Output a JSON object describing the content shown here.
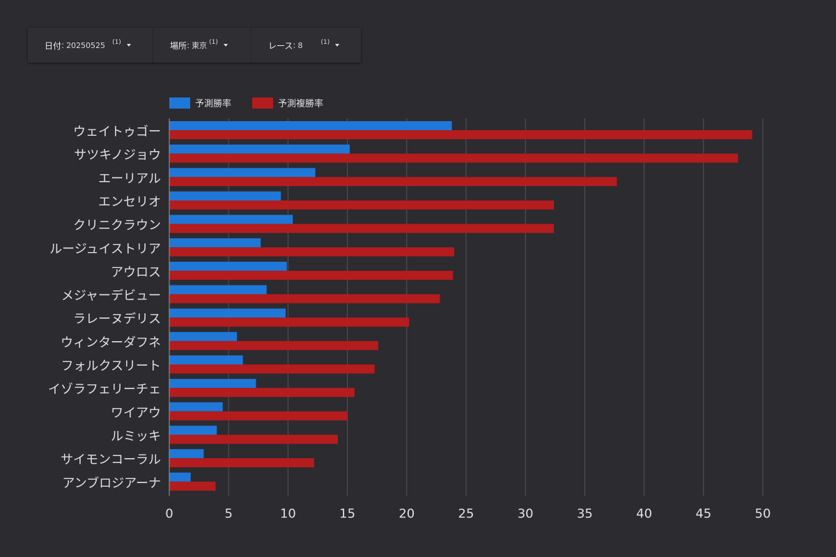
{
  "filters": [
    {
      "label": "日付",
      "value": "20250525",
      "count": "(1)"
    },
    {
      "label": "場所",
      "value": "東京",
      "count": "(1)"
    },
    {
      "label": "レース",
      "value": "8",
      "count": "(1)"
    }
  ],
  "colors": {
    "win": "#1f78d8",
    "place": "#b41c1d",
    "background": "#2c2b30",
    "grid": "#555459",
    "text": "#e0e0e0"
  },
  "chart_data": {
    "type": "bar",
    "orientation": "horizontal",
    "categories": [
      "ウェイトゥゴー",
      "サツキノジョウ",
      "エーリアル",
      "エンセリオ",
      "クリニクラウン",
      "ルージュイストリア",
      "アウロス",
      "メジャーデビュー",
      "ラレーヌデリス",
      "ウィンターダフネ",
      "フォルクスリート",
      "イゾラフェリーチェ",
      "ワイアウ",
      "ルミッキ",
      "サイモンコーラル",
      "アンブロジアーナ"
    ],
    "series": [
      {
        "name": "予測勝率",
        "color": "#1f78d8",
        "values": [
          23.8,
          15.2,
          12.3,
          9.4,
          10.4,
          7.7,
          9.9,
          8.2,
          9.8,
          5.7,
          6.2,
          7.3,
          4.5,
          4.0,
          2.9,
          1.8
        ]
      },
      {
        "name": "予測複勝率",
        "color": "#b41c1d",
        "values": [
          49.1,
          47.9,
          37.7,
          32.4,
          32.4,
          24.0,
          23.9,
          22.8,
          20.2,
          17.6,
          17.3,
          15.6,
          15.0,
          14.2,
          12.2,
          3.9
        ]
      }
    ],
    "xlim": [
      0,
      50
    ],
    "xticks": [
      0,
      5,
      10,
      15,
      20,
      25,
      30,
      35,
      40,
      45,
      50
    ],
    "grid": true,
    "legend_position": "top-left"
  }
}
